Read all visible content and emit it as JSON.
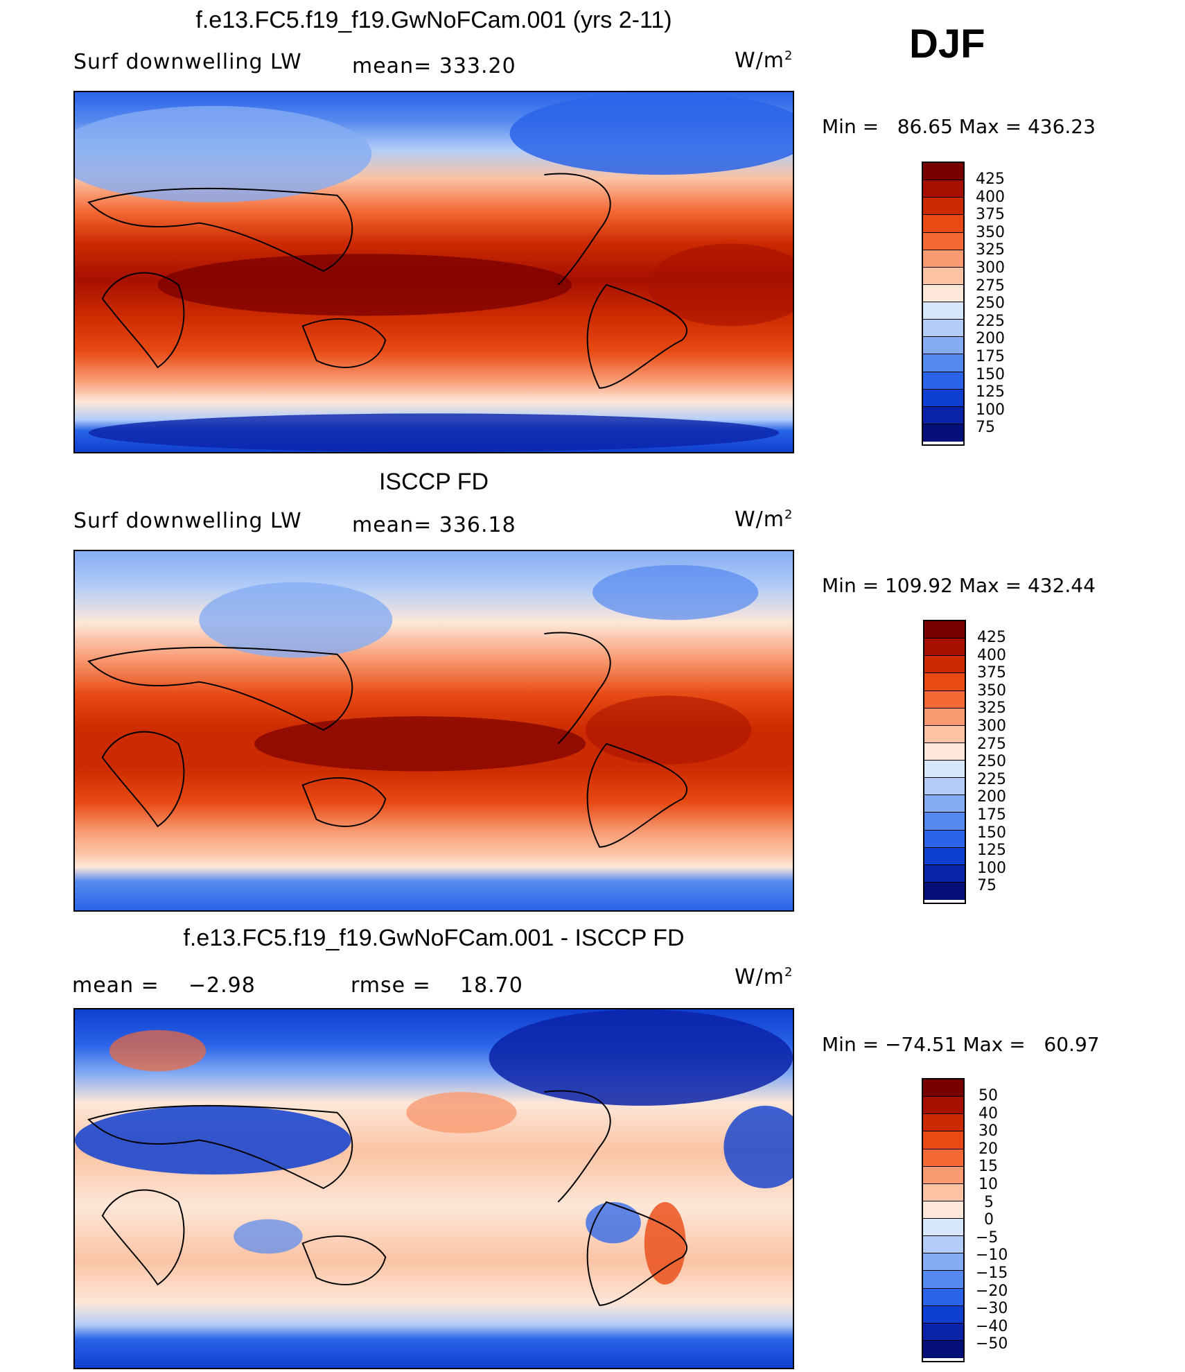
{
  "season": "DJF",
  "panels": [
    {
      "title": "f.e13.FC5.f19_f19.GwNoFCam.001 (yrs 2-11)",
      "left_label": "Surf downwelling LW",
      "center_label": "mean= 333.20",
      "units": "W/m",
      "units_sup": "2",
      "minmax": "Min =   86.65 Max = 436.23",
      "colorbar_labels": [
        "425",
        "400",
        "375",
        "350",
        "325",
        "300",
        "275",
        "250",
        "225",
        "200",
        "175",
        "150",
        "125",
        "100",
        "75"
      ]
    },
    {
      "title": "ISCCP FD",
      "left_label": "Surf downwelling LW",
      "center_label": "mean= 336.18",
      "units": "W/m",
      "units_sup": "2",
      "minmax": "Min = 109.92 Max = 432.44",
      "colorbar_labels": [
        "425",
        "400",
        "375",
        "350",
        "325",
        "300",
        "275",
        "250",
        "225",
        "200",
        "175",
        "150",
        "125",
        "100",
        "75"
      ]
    },
    {
      "title": "f.e13.FC5.f19_f19.GwNoFCam.001 - ISCCP FD",
      "left_label": "mean =    −2.98",
      "center_label": "rmse =    18.70",
      "units": "W/m",
      "units_sup": "2",
      "minmax": "Min = −74.51 Max =   60.97",
      "colorbar_labels": [
        "50",
        "40",
        "30",
        "20",
        "15",
        "10",
        "5",
        "0",
        "−5",
        "−10",
        "−15",
        "−20",
        "−30",
        "−40",
        "−50"
      ]
    }
  ],
  "colorbar_colors": [
    "#7a0000",
    "#a71000",
    "#cc2a00",
    "#e84a14",
    "#f46a36",
    "#f89a72",
    "#fbc3a4",
    "#fde7d8",
    "#d6e6fb",
    "#b3cdf8",
    "#86acf3",
    "#5689ef",
    "#2a64e8",
    "#0f3fd0",
    "#0a23a8",
    "#050f7a"
  ],
  "chart_data": [
    {
      "type": "heatmap",
      "title": "f.e13.FC5.f19_f19.GwNoFCam.001 (yrs 2-11)",
      "variable": "Surf downwelling LW",
      "units": "W/m2",
      "mean": 333.2,
      "min": 86.65,
      "max": 436.23,
      "levels": [
        75,
        100,
        125,
        150,
        175,
        200,
        225,
        250,
        275,
        300,
        325,
        350,
        375,
        400,
        425
      ]
    },
    {
      "type": "heatmap",
      "title": "ISCCP FD",
      "variable": "Surf downwelling LW",
      "units": "W/m2",
      "mean": 336.18,
      "min": 109.92,
      "max": 432.44,
      "levels": [
        75,
        100,
        125,
        150,
        175,
        200,
        225,
        250,
        275,
        300,
        325,
        350,
        375,
        400,
        425
      ]
    },
    {
      "type": "heatmap",
      "title": "f.e13.FC5.f19_f19.GwNoFCam.001 - ISCCP FD",
      "units": "W/m2",
      "mean": -2.98,
      "rmse": 18.7,
      "min": -74.51,
      "max": 60.97,
      "levels": [
        -50,
        -40,
        -30,
        -20,
        -15,
        -10,
        -5,
        0,
        5,
        10,
        15,
        20,
        30,
        40,
        50
      ]
    }
  ]
}
